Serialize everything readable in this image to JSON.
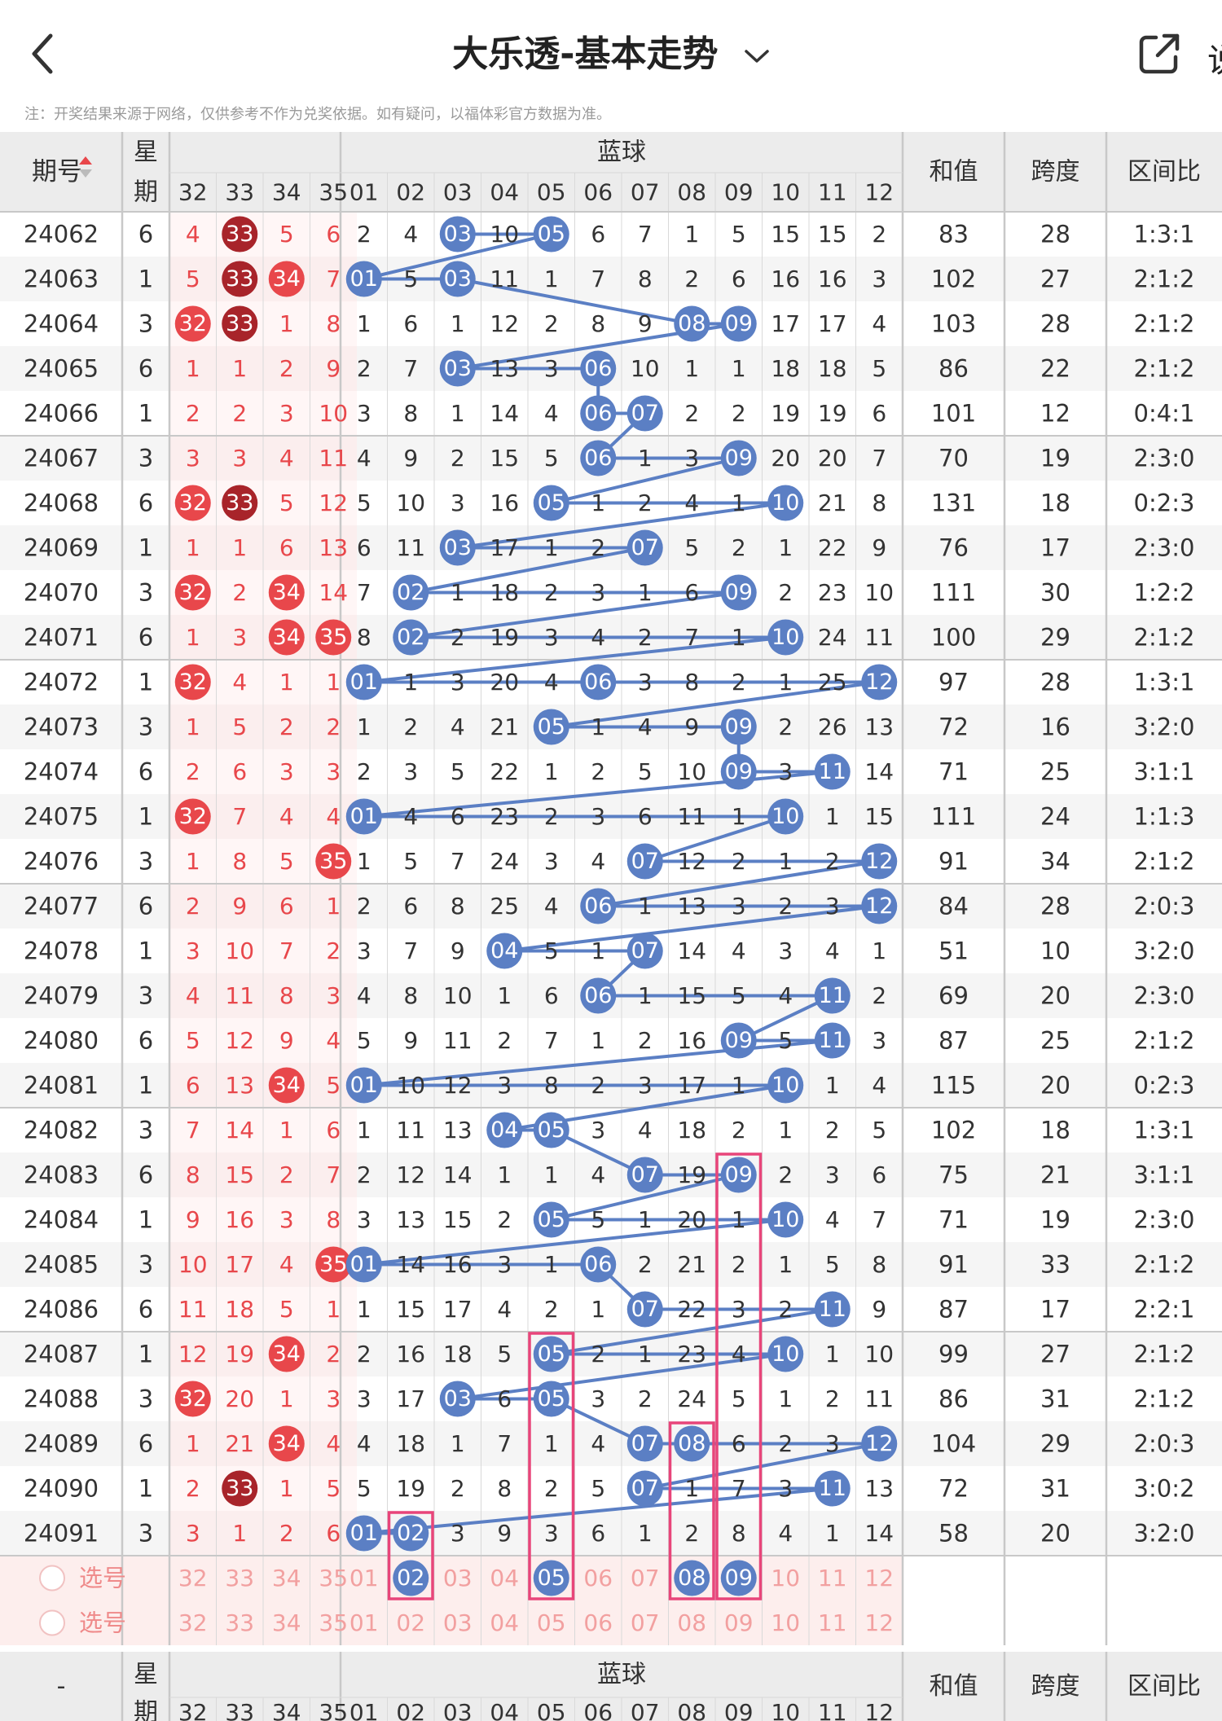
{
  "header": {
    "title": "大乐透-基本走势",
    "cut_text": "说"
  },
  "notice": "注：开奖结果来源于网络，仅供参考不作为兑奖依据。如有疑问，以福体彩官方数据为准。",
  "colors": {
    "blue": "#5b7fc4",
    "red": "#e8474b",
    "darkred": "#a8242a",
    "pink": "#e8457a",
    "grid": "#d9d9d9",
    "header_bg": "#ececec",
    "row_alt": "#f5f5f5",
    "select_bg": "#fdeeed"
  },
  "table": {
    "col_issue": "期号",
    "col_week_1": "星",
    "col_week_2": "期",
    "col_blue": "蓝球",
    "col_sum": "和值",
    "col_span": "跨度",
    "col_ratio": "区间比",
    "front_cols": [
      "32",
      "33",
      "34",
      "35"
    ],
    "blue_cols": [
      "01",
      "02",
      "03",
      "04",
      "05",
      "06",
      "07",
      "08",
      "09",
      "10",
      "11",
      "12"
    ],
    "rows": [
      {
        "issue": "24062",
        "week": "6",
        "front": [
          "4",
          "33",
          "5",
          "6"
        ],
        "fh": [
          false,
          true,
          false,
          false
        ],
        "blue": [
          "2",
          "4",
          "03",
          "10",
          "05",
          "6",
          "7",
          "1",
          "5",
          "15",
          "15",
          "2"
        ],
        "sum": "83",
        "span": "28",
        "ratio": "1:3:1"
      },
      {
        "issue": "24063",
        "week": "1",
        "front": [
          "5",
          "33",
          "34",
          "7"
        ],
        "fh": [
          false,
          true,
          true,
          false
        ],
        "blue": [
          "01",
          "5",
          "03",
          "11",
          "1",
          "7",
          "8",
          "2",
          "6",
          "16",
          "16",
          "3"
        ],
        "sum": "102",
        "span": "27",
        "ratio": "2:1:2"
      },
      {
        "issue": "24064",
        "week": "3",
        "front": [
          "32",
          "33",
          "1",
          "8"
        ],
        "fh": [
          true,
          true,
          false,
          false
        ],
        "blue": [
          "1",
          "6",
          "1",
          "12",
          "2",
          "8",
          "9",
          "08",
          "09",
          "17",
          "17",
          "4"
        ],
        "sum": "103",
        "span": "28",
        "ratio": "2:1:2"
      },
      {
        "issue": "24065",
        "week": "6",
        "front": [
          "1",
          "1",
          "2",
          "9"
        ],
        "fh": [
          false,
          false,
          false,
          false
        ],
        "blue": [
          "2",
          "7",
          "03",
          "13",
          "3",
          "06",
          "10",
          "1",
          "1",
          "18",
          "18",
          "5"
        ],
        "sum": "86",
        "span": "22",
        "ratio": "2:1:2"
      },
      {
        "issue": "24066",
        "week": "1",
        "front": [
          "2",
          "2",
          "3",
          "10"
        ],
        "fh": [
          false,
          false,
          false,
          false
        ],
        "blue": [
          "3",
          "8",
          "1",
          "14",
          "4",
          "06",
          "07",
          "2",
          "2",
          "19",
          "19",
          "6"
        ],
        "sum": "101",
        "span": "12",
        "ratio": "0:4:1"
      },
      {
        "issue": "24067",
        "week": "3",
        "front": [
          "3",
          "3",
          "4",
          "11"
        ],
        "fh": [
          false,
          false,
          false,
          false
        ],
        "blue": [
          "4",
          "9",
          "2",
          "15",
          "5",
          "06",
          "1",
          "3",
          "09",
          "20",
          "20",
          "7"
        ],
        "sum": "70",
        "span": "19",
        "ratio": "2:3:0"
      },
      {
        "issue": "24068",
        "week": "6",
        "front": [
          "32",
          "33",
          "5",
          "12"
        ],
        "fh": [
          true,
          true,
          false,
          false
        ],
        "blue": [
          "5",
          "10",
          "3",
          "16",
          "05",
          "1",
          "2",
          "4",
          "1",
          "10",
          "21",
          "8"
        ],
        "sum": "131",
        "span": "18",
        "ratio": "0:2:3"
      },
      {
        "issue": "24069",
        "week": "1",
        "front": [
          "1",
          "1",
          "6",
          "13"
        ],
        "fh": [
          false,
          false,
          false,
          false
        ],
        "blue": [
          "6",
          "11",
          "03",
          "17",
          "1",
          "2",
          "07",
          "5",
          "2",
          "1",
          "22",
          "9"
        ],
        "sum": "76",
        "span": "17",
        "ratio": "2:3:0"
      },
      {
        "issue": "24070",
        "week": "3",
        "front": [
          "32",
          "2",
          "34",
          "14"
        ],
        "fh": [
          true,
          false,
          true,
          false
        ],
        "blue": [
          "7",
          "02",
          "1",
          "18",
          "2",
          "3",
          "1",
          "6",
          "09",
          "2",
          "23",
          "10"
        ],
        "sum": "111",
        "span": "30",
        "ratio": "1:2:2"
      },
      {
        "issue": "24071",
        "week": "6",
        "front": [
          "1",
          "3",
          "34",
          "35"
        ],
        "fh": [
          false,
          false,
          true,
          true
        ],
        "blue": [
          "8",
          "02",
          "2",
          "19",
          "3",
          "4",
          "2",
          "7",
          "1",
          "10",
          "24",
          "11"
        ],
        "sum": "100",
        "span": "29",
        "ratio": "2:1:2"
      },
      {
        "issue": "24072",
        "week": "1",
        "front": [
          "32",
          "4",
          "1",
          "1"
        ],
        "fh": [
          true,
          false,
          false,
          false
        ],
        "blue": [
          "01",
          "1",
          "3",
          "20",
          "4",
          "06",
          "3",
          "8",
          "2",
          "1",
          "25",
          "12"
        ],
        "sum": "97",
        "span": "28",
        "ratio": "1:3:1"
      },
      {
        "issue": "24073",
        "week": "3",
        "front": [
          "1",
          "5",
          "2",
          "2"
        ],
        "fh": [
          false,
          false,
          false,
          false
        ],
        "blue": [
          "1",
          "2",
          "4",
          "21",
          "05",
          "1",
          "4",
          "9",
          "09",
          "2",
          "26",
          "13"
        ],
        "sum": "72",
        "span": "16",
        "ratio": "3:2:0"
      },
      {
        "issue": "24074",
        "week": "6",
        "front": [
          "2",
          "6",
          "3",
          "3"
        ],
        "fh": [
          false,
          false,
          false,
          false
        ],
        "blue": [
          "2",
          "3",
          "5",
          "22",
          "1",
          "2",
          "5",
          "10",
          "09",
          "3",
          "11",
          "14"
        ],
        "sum": "71",
        "span": "25",
        "ratio": "3:1:1"
      },
      {
        "issue": "24075",
        "week": "1",
        "front": [
          "32",
          "7",
          "4",
          "4"
        ],
        "fh": [
          true,
          false,
          false,
          false
        ],
        "blue": [
          "01",
          "4",
          "6",
          "23",
          "2",
          "3",
          "6",
          "11",
          "1",
          "10",
          "1",
          "15"
        ],
        "sum": "111",
        "span": "24",
        "ratio": "1:1:3"
      },
      {
        "issue": "24076",
        "week": "3",
        "front": [
          "1",
          "8",
          "5",
          "35"
        ],
        "fh": [
          false,
          false,
          false,
          true
        ],
        "blue": [
          "1",
          "5",
          "7",
          "24",
          "3",
          "4",
          "07",
          "12",
          "2",
          "1",
          "2",
          "12"
        ],
        "sum": "91",
        "span": "34",
        "ratio": "2:1:2"
      },
      {
        "issue": "24077",
        "week": "6",
        "front": [
          "2",
          "9",
          "6",
          "1"
        ],
        "fh": [
          false,
          false,
          false,
          false
        ],
        "blue": [
          "2",
          "6",
          "8",
          "25",
          "4",
          "06",
          "1",
          "13",
          "3",
          "2",
          "3",
          "12"
        ],
        "sum": "84",
        "span": "28",
        "ratio": "2:0:3"
      },
      {
        "issue": "24078",
        "week": "1",
        "front": [
          "3",
          "10",
          "7",
          "2"
        ],
        "fh": [
          false,
          false,
          false,
          false
        ],
        "blue": [
          "3",
          "7",
          "9",
          "04",
          "5",
          "1",
          "07",
          "14",
          "4",
          "3",
          "4",
          "1"
        ],
        "sum": "51",
        "span": "10",
        "ratio": "3:2:0"
      },
      {
        "issue": "24079",
        "week": "3",
        "front": [
          "4",
          "11",
          "8",
          "3"
        ],
        "fh": [
          false,
          false,
          false,
          false
        ],
        "blue": [
          "4",
          "8",
          "10",
          "1",
          "6",
          "06",
          "1",
          "15",
          "5",
          "4",
          "11",
          "2"
        ],
        "sum": "69",
        "span": "20",
        "ratio": "2:3:0"
      },
      {
        "issue": "24080",
        "week": "6",
        "front": [
          "5",
          "12",
          "9",
          "4"
        ],
        "fh": [
          false,
          false,
          false,
          false
        ],
        "blue": [
          "5",
          "9",
          "11",
          "2",
          "7",
          "1",
          "2",
          "16",
          "09",
          "5",
          "11",
          "3"
        ],
        "sum": "87",
        "span": "25",
        "ratio": "2:1:2"
      },
      {
        "issue": "24081",
        "week": "1",
        "front": [
          "6",
          "13",
          "34",
          "5"
        ],
        "fh": [
          false,
          false,
          true,
          false
        ],
        "blue": [
          "01",
          "10",
          "12",
          "3",
          "8",
          "2",
          "3",
          "17",
          "1",
          "10",
          "1",
          "4"
        ],
        "sum": "115",
        "span": "20",
        "ratio": "0:2:3"
      },
      {
        "issue": "24082",
        "week": "3",
        "front": [
          "7",
          "14",
          "1",
          "6"
        ],
        "fh": [
          false,
          false,
          false,
          false
        ],
        "blue": [
          "1",
          "11",
          "13",
          "04",
          "05",
          "3",
          "4",
          "18",
          "2",
          "1",
          "2",
          "5"
        ],
        "sum": "102",
        "span": "18",
        "ratio": "1:3:1"
      },
      {
        "issue": "24083",
        "week": "6",
        "front": [
          "8",
          "15",
          "2",
          "7"
        ],
        "fh": [
          false,
          false,
          false,
          false
        ],
        "blue": [
          "2",
          "12",
          "14",
          "1",
          "1",
          "4",
          "07",
          "19",
          "09",
          "2",
          "3",
          "6"
        ],
        "sum": "75",
        "span": "21",
        "ratio": "3:1:1"
      },
      {
        "issue": "24084",
        "week": "1",
        "front": [
          "9",
          "16",
          "3",
          "8"
        ],
        "fh": [
          false,
          false,
          false,
          false
        ],
        "blue": [
          "3",
          "13",
          "15",
          "2",
          "05",
          "5",
          "1",
          "20",
          "1",
          "10",
          "4",
          "7"
        ],
        "sum": "71",
        "span": "19",
        "ratio": "2:3:0"
      },
      {
        "issue": "24085",
        "week": "3",
        "front": [
          "10",
          "17",
          "4",
          "35"
        ],
        "fh": [
          false,
          false,
          false,
          true
        ],
        "blue": [
          "01",
          "14",
          "16",
          "3",
          "1",
          "06",
          "2",
          "21",
          "2",
          "1",
          "5",
          "8"
        ],
        "sum": "91",
        "span": "33",
        "ratio": "2:1:2"
      },
      {
        "issue": "24086",
        "week": "6",
        "front": [
          "11",
          "18",
          "5",
          "1"
        ],
        "fh": [
          false,
          false,
          false,
          false
        ],
        "blue": [
          "1",
          "15",
          "17",
          "4",
          "2",
          "1",
          "07",
          "22",
          "3",
          "2",
          "11",
          "9"
        ],
        "sum": "87",
        "span": "17",
        "ratio": "2:2:1"
      },
      {
        "issue": "24087",
        "week": "1",
        "front": [
          "12",
          "19",
          "34",
          "2"
        ],
        "fh": [
          false,
          false,
          true,
          false
        ],
        "blue": [
          "2",
          "16",
          "18",
          "5",
          "05",
          "2",
          "1",
          "23",
          "4",
          "10",
          "1",
          "10"
        ],
        "sum": "99",
        "span": "27",
        "ratio": "2:1:2"
      },
      {
        "issue": "24088",
        "week": "3",
        "front": [
          "32",
          "20",
          "1",
          "3"
        ],
        "fh": [
          true,
          false,
          false,
          false
        ],
        "blue": [
          "3",
          "17",
          "03",
          "6",
          "05",
          "3",
          "2",
          "24",
          "5",
          "1",
          "2",
          "11"
        ],
        "sum": "86",
        "span": "31",
        "ratio": "2:1:2"
      },
      {
        "issue": "24089",
        "week": "6",
        "front": [
          "1",
          "21",
          "34",
          "4"
        ],
        "fh": [
          false,
          false,
          true,
          false
        ],
        "blue": [
          "4",
          "18",
          "1",
          "7",
          "1",
          "4",
          "07",
          "08",
          "6",
          "2",
          "3",
          "12"
        ],
        "sum": "104",
        "span": "29",
        "ratio": "2:0:3"
      },
      {
        "issue": "24090",
        "week": "1",
        "front": [
          "2",
          "33",
          "1",
          "5"
        ],
        "fh": [
          false,
          true,
          false,
          false
        ],
        "blue": [
          "5",
          "19",
          "2",
          "8",
          "2",
          "5",
          "07",
          "1",
          "7",
          "3",
          "11",
          "13"
        ],
        "sum": "72",
        "span": "31",
        "ratio": "3:0:2"
      },
      {
        "issue": "24091",
        "week": "3",
        "front": [
          "3",
          "1",
          "2",
          "6"
        ],
        "fh": [
          false,
          false,
          false,
          false
        ],
        "blue": [
          "01",
          "02",
          "3",
          "9",
          "3",
          "6",
          "1",
          "2",
          "8",
          "4",
          "1",
          "14"
        ],
        "sum": "58",
        "span": "20",
        "ratio": "3:2:0"
      }
    ],
    "select_label": "选号",
    "selected_blue": [
      "02",
      "05",
      "08",
      "09"
    ],
    "footer_issue": "-"
  }
}
